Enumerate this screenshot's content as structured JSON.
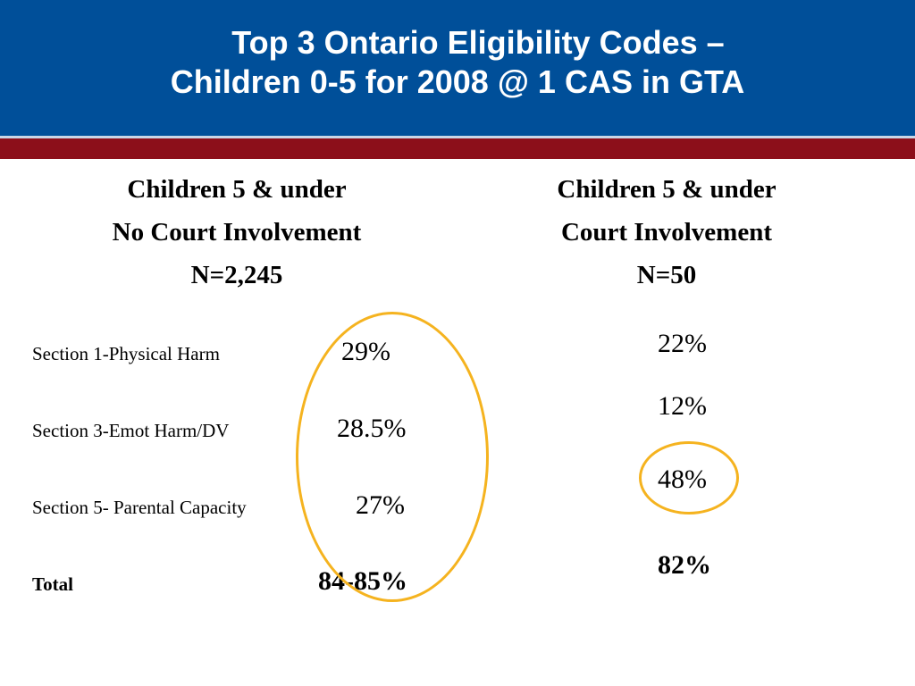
{
  "title": {
    "line1": "Top 3 Ontario Eligibility Codes –",
    "line2": "Children 0-5 for 2008 @ 1 CAS in GTA"
  },
  "columns": {
    "left": {
      "heading1": "Children 5 & under",
      "heading2": "No Court Involvement",
      "n": "N=2,245"
    },
    "right": {
      "heading1": "Children 5 & under",
      "heading2": "Court Involvement",
      "n": "N=50"
    }
  },
  "rows": [
    {
      "label": "Section 1-Physical Harm",
      "no_court": "29%",
      "court": "22%"
    },
    {
      "label": "Section 3-Emot Harm/DV",
      "no_court": "28.5%",
      "court": "12%"
    },
    {
      "label": "Section 5- Parental Capacity",
      "no_court": "27%",
      "court": "48%"
    },
    {
      "label": "Total",
      "no_court": "84-85%",
      "court": "82%"
    }
  ],
  "colors": {
    "header_blue": "#004f99",
    "header_red": "#8c0f1a",
    "highlight_circle": "#f5b31f"
  }
}
